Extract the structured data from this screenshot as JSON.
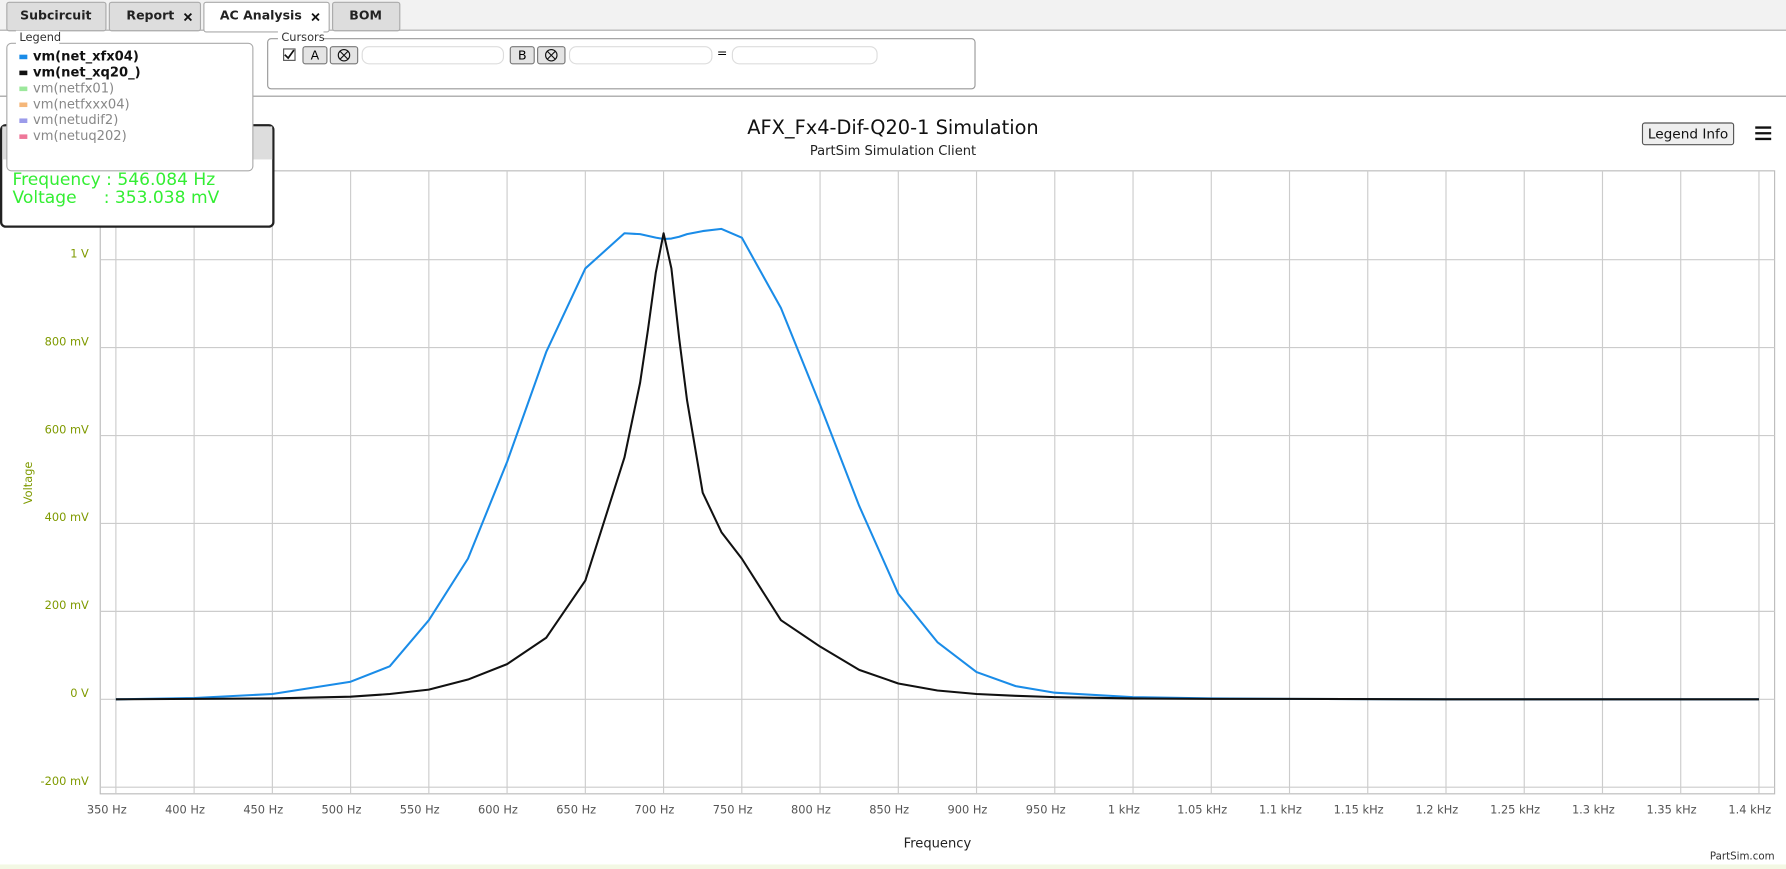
{
  "tabs": [
    "Subcircuit",
    "Report",
    "AC Analysis",
    "BOM"
  ],
  "cursors": {
    "title": "Cursors",
    "a": "A",
    "b": "B",
    "equals": "="
  },
  "legend_info_button": "Legend Info",
  "cursor_readout": [
    "Frequency : 546.084 Hz",
    "Voltage     : 353.038 mV"
  ],
  "footer": "PartSim.com",
  "chart_data": {
    "type": "line",
    "title": "AFX_Fx4-Dif-Q20-1 Simulation",
    "subtitle": "PartSim Simulation Client",
    "legend_title": "Legend",
    "x_label": "Frequency",
    "y_label": "Voltage",
    "grid": true,
    "x": [
      350,
      400,
      450,
      500,
      525,
      550,
      575,
      600,
      625,
      650,
      675,
      685,
      690,
      695,
      700,
      705,
      710,
      715,
      725,
      737,
      750,
      775,
      800,
      825,
      850,
      875,
      900,
      925,
      950,
      1000,
      1050,
      1100,
      1200,
      1400
    ],
    "series": [
      {
        "name": "vm(net_xfx04)",
        "color": "#1a8ce8",
        "values": [
          0,
          0.003,
          0.012,
          0.04,
          0.075,
          0.18,
          0.32,
          0.54,
          0.79,
          0.98,
          1.06,
          1.058,
          1.054,
          1.05,
          1.047,
          1.048,
          1.052,
          1.058,
          1.065,
          1.07,
          1.05,
          0.89,
          0.67,
          0.44,
          0.24,
          0.13,
          0.062,
          0.03,
          0.015,
          0.005,
          0.002,
          0.001,
          0,
          0
        ]
      },
      {
        "name": "vm(net_xq20_)",
        "color": "#111111",
        "values": [
          0,
          0.001,
          0.002,
          0.006,
          0.012,
          0.022,
          0.045,
          0.08,
          0.14,
          0.27,
          0.55,
          0.72,
          0.84,
          0.97,
          1.06,
          0.98,
          0.82,
          0.68,
          0.47,
          0.38,
          0.32,
          0.18,
          0.12,
          0.067,
          0.036,
          0.02,
          0.012,
          0.008,
          0.005,
          0.002,
          0.001,
          0.001,
          0,
          0
        ]
      }
    ],
    "hidden_series": [
      {
        "name": "vm(netfx01)",
        "color": "#9ce89c"
      },
      {
        "name": "vm(netfxxx04)",
        "color": "#f5b77a"
      },
      {
        "name": "vm(netudif2)",
        "color": "#9b9bea"
      },
      {
        "name": "vm(netuq202)",
        "color": "#ee7799"
      }
    ],
    "xlim": [
      340,
      1410
    ],
    "xticks": [
      {
        "value": 350,
        "label": "350 Hz"
      },
      {
        "value": 400,
        "label": "400 Hz"
      },
      {
        "value": 450,
        "label": "450 Hz"
      },
      {
        "value": 500,
        "label": "500 Hz"
      },
      {
        "value": 550,
        "label": "550 Hz"
      },
      {
        "value": 600,
        "label": "600 Hz"
      },
      {
        "value": 650,
        "label": "650 Hz"
      },
      {
        "value": 700,
        "label": "700 Hz"
      },
      {
        "value": 750,
        "label": "750 Hz"
      },
      {
        "value": 800,
        "label": "800 Hz"
      },
      {
        "value": 850,
        "label": "850 Hz"
      },
      {
        "value": 900,
        "label": "900 Hz"
      },
      {
        "value": 950,
        "label": "950 Hz"
      },
      {
        "value": 1000,
        "label": "1 kHz"
      },
      {
        "value": 1050,
        "label": "1.05 kHz"
      },
      {
        "value": 1100,
        "label": "1.1 kHz"
      },
      {
        "value": 1150,
        "label": "1.15 kHz"
      },
      {
        "value": 1200,
        "label": "1.2 kHz"
      },
      {
        "value": 1250,
        "label": "1.25 kHz"
      },
      {
        "value": 1300,
        "label": "1.3 kHz"
      },
      {
        "value": 1350,
        "label": "1.35 kHz"
      },
      {
        "value": 1400,
        "label": "1.4 kHz"
      }
    ],
    "ylim": [
      -0.215,
      1.202
    ],
    "yticks": [
      {
        "value": -0.2,
        "label": "-200 mV"
      },
      {
        "value": 0,
        "label": "0 V"
      },
      {
        "value": 0.2,
        "label": "200 mV"
      },
      {
        "value": 0.4,
        "label": "400 mV"
      },
      {
        "value": 0.6,
        "label": "600 mV"
      },
      {
        "value": 0.8,
        "label": "800 mV"
      },
      {
        "value": 1,
        "label": "1 V"
      }
    ]
  }
}
